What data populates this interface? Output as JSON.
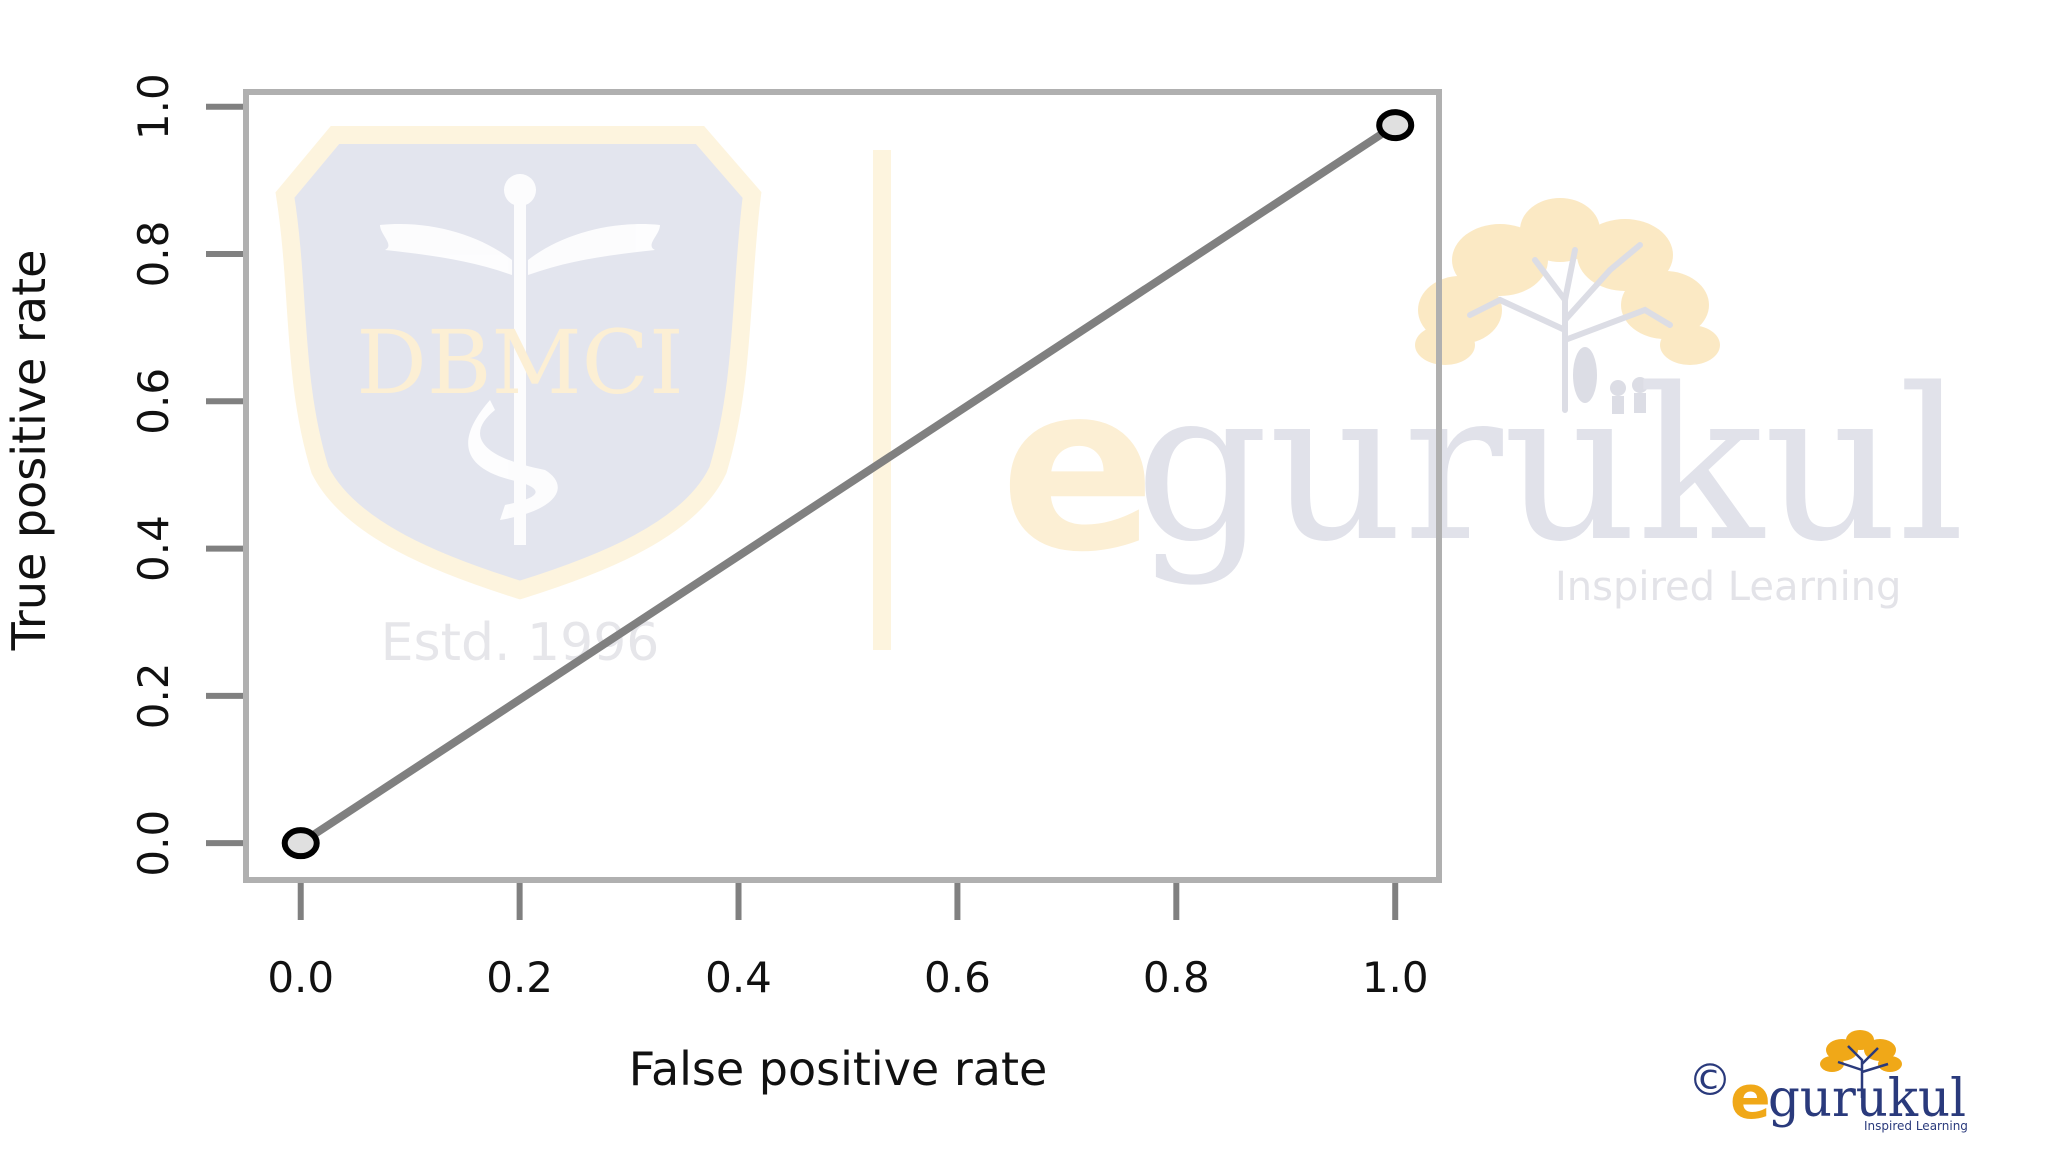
{
  "chart_data": {
    "type": "line",
    "xlabel": "False positive rate",
    "ylabel": "True positive rate",
    "xlim": [
      -0.05,
      1.04
    ],
    "ylim": [
      -0.05,
      1.02
    ],
    "xticks": [
      "0.0",
      "0.2",
      "0.4",
      "0.6",
      "0.8",
      "1.0"
    ],
    "yticks": [
      "0.0",
      "0.2",
      "0.4",
      "0.6",
      "0.8",
      "1.0"
    ],
    "grid": false,
    "series": [
      {
        "x": [
          0.0,
          1.0
        ],
        "y": [
          0.0,
          0.975
        ]
      }
    ],
    "colors": {
      "line": "#808080",
      "marker_fill": "#e0e0e0",
      "marker_edge": "#000000",
      "frame": "#b0b0b0",
      "tick": "#808080"
    }
  },
  "watermarks": {
    "left_logo_text": "DBMCI",
    "left_estd": "Estd. 1996",
    "right_brand_e": "e",
    "right_brand_rest": "gurukul",
    "right_tagline": "Inspired Learning",
    "colors": {
      "shield": "#e3e5ee",
      "shield_border": "#fdf4de",
      "yellow": "#fcefd4",
      "grey_text": "#e1e2ea",
      "tree_leaf": "#fbe9c4"
    }
  },
  "footer_logo": {
    "copyright": "©",
    "brand_e": "e",
    "brand_rest": "gurukul",
    "tagline": "Inspired Learning",
    "colors": {
      "navy": "#2a3a7c",
      "orange": "#f0a818"
    },
    "icon": "tree-icon"
  }
}
